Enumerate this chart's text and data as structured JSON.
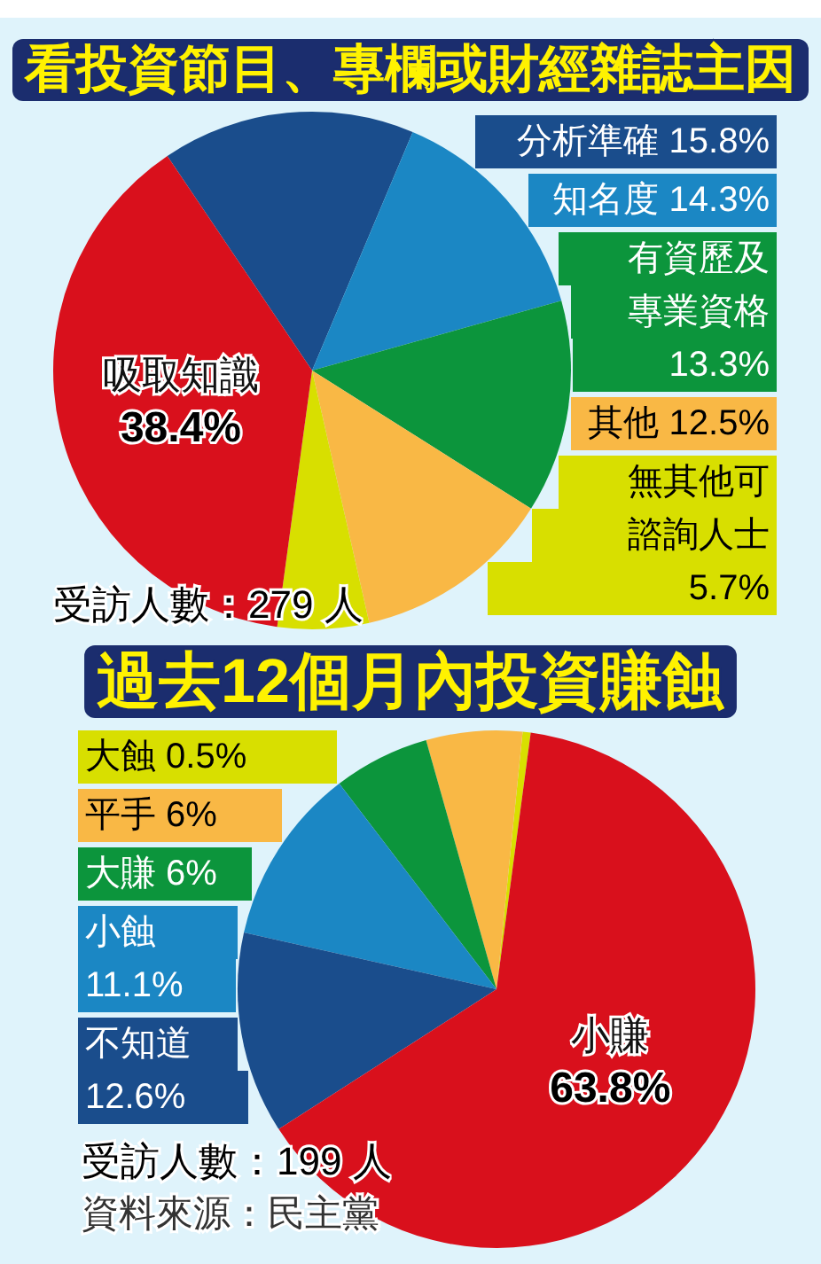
{
  "chart_data": [
    {
      "type": "pie",
      "title": "看投資節目、專欄或財經雜誌主因",
      "categories": [
        "分析準確",
        "知名度",
        "有資歷及專業資格",
        "其他",
        "無其他可諮詢人士",
        "吸取知識"
      ],
      "values": [
        15.8,
        14.3,
        13.3,
        12.5,
        5.7,
        38.4
      ],
      "value_labels": [
        "15.8%",
        "14.3%",
        "13.3%",
        "12.5%",
        "5.7%",
        "38.4%"
      ],
      "colors": [
        "#1a4d8c",
        "#1b87c4",
        "#0c953c",
        "#f9b845",
        "#d8df00",
        "#d9101c"
      ],
      "legend": "right",
      "annotations": [
        "受訪人數：279 人"
      ]
    },
    {
      "type": "pie",
      "title": "過去12個月內投資賺蝕",
      "categories": [
        "大蝕",
        "平手",
        "大賺",
        "小蝕",
        "不知道",
        "小賺"
      ],
      "values": [
        0.5,
        6,
        6,
        11.1,
        12.6,
        63.8
      ],
      "value_labels": [
        "0.5%",
        "6%",
        "6%",
        "11.1%",
        "12.6%",
        "63.8%"
      ],
      "colors": [
        "#d8df00",
        "#f9b845",
        "#0c953c",
        "#1b87c4",
        "#1a4d8c",
        "#d9101c"
      ],
      "legend": "left",
      "annotations": [
        "受訪人數：199 人",
        "資料來源：民主黨"
      ]
    }
  ]
}
